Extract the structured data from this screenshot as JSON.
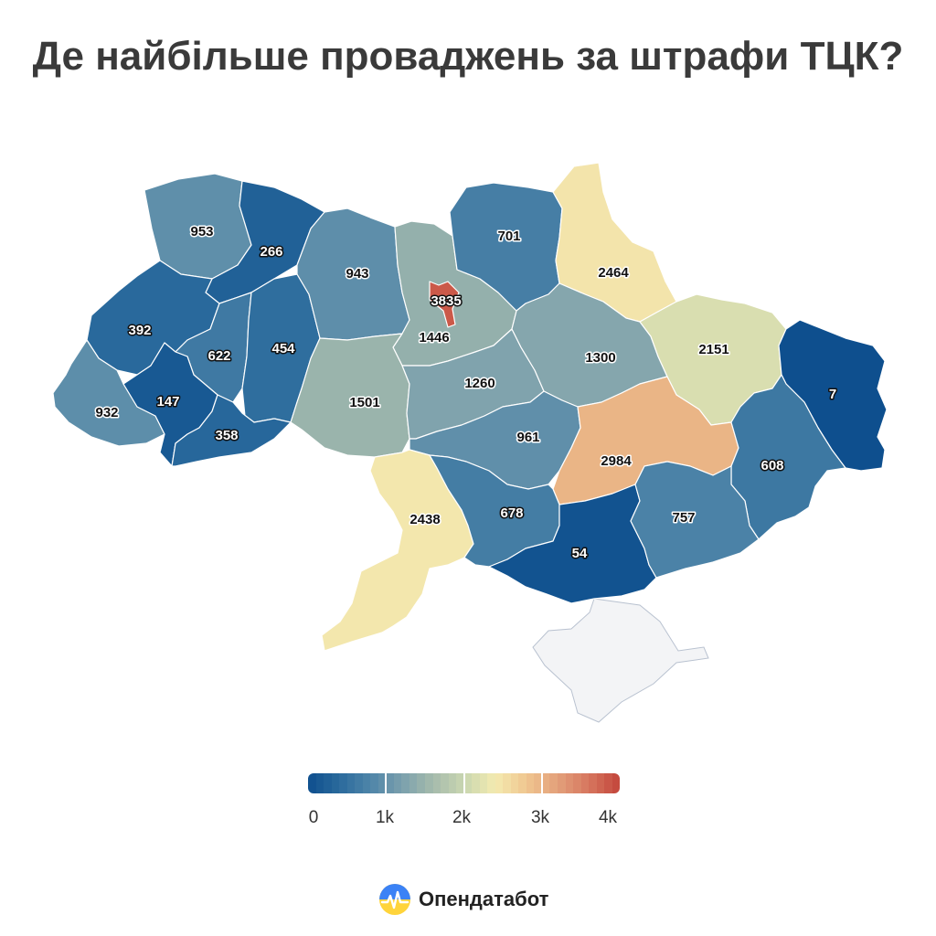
{
  "title": "Де найбільше проваджень за штрафи ТЦК?",
  "colors": {
    "scale": [
      "#0e4f8e",
      "#2a6a9c",
      "#4f85a8",
      "#7a9fad",
      "#a5bbac",
      "#c9d6b0",
      "#f3eab0",
      "#f0c690",
      "#e3a07a",
      "#d6765e",
      "#c3453b"
    ],
    "no_data": "#f3f4f6"
  },
  "legend": {
    "min": 0,
    "max": 4000,
    "ticks": [
      {
        "label": "0",
        "value": 0
      },
      {
        "label": "1k",
        "value": 1000
      },
      {
        "label": "2k",
        "value": 2000
      },
      {
        "label": "3k",
        "value": 3000
      },
      {
        "label": "4k",
        "value": 4000
      }
    ]
  },
  "regions": [
    {
      "id": "volyn",
      "value": 953,
      "label": "953"
    },
    {
      "id": "rivne",
      "value": 266,
      "label": "266"
    },
    {
      "id": "lviv",
      "value": 392,
      "label": "392"
    },
    {
      "id": "ternopil",
      "value": 622,
      "label": "622"
    },
    {
      "id": "khmelnytskyi",
      "value": 454,
      "label": "454"
    },
    {
      "id": "zakarpattia",
      "value": 932,
      "label": "932"
    },
    {
      "id": "ivano-frankivsk",
      "value": 147,
      "label": "147"
    },
    {
      "id": "chernivtsi",
      "value": 358,
      "label": "358"
    },
    {
      "id": "zhytomyr",
      "value": 943,
      "label": "943"
    },
    {
      "id": "kyiv-oblast",
      "value": 1446,
      "label": "1446"
    },
    {
      "id": "kyiv-city",
      "value": 3835,
      "label": "3835"
    },
    {
      "id": "vinnytsia",
      "value": 1501,
      "label": "1501"
    },
    {
      "id": "cherkasy",
      "value": 1260,
      "label": "1260"
    },
    {
      "id": "chernihiv",
      "value": 701,
      "label": "701"
    },
    {
      "id": "sumy",
      "value": 2464,
      "label": "2464"
    },
    {
      "id": "poltava",
      "value": 1300,
      "label": "1300"
    },
    {
      "id": "kharkiv",
      "value": 2151,
      "label": "2151"
    },
    {
      "id": "luhansk",
      "value": 7,
      "label": "7"
    },
    {
      "id": "kirovohrad",
      "value": 961,
      "label": "961"
    },
    {
      "id": "dnipropetrovsk",
      "value": 2984,
      "label": "2984"
    },
    {
      "id": "donetsk",
      "value": 608,
      "label": "608"
    },
    {
      "id": "odesa",
      "value": 2438,
      "label": "2438"
    },
    {
      "id": "mykolaiv",
      "value": 678,
      "label": "678"
    },
    {
      "id": "kherson",
      "value": 54,
      "label": "54"
    },
    {
      "id": "zaporizhzhia",
      "value": 757,
      "label": "757"
    },
    {
      "id": "crimea",
      "value": null,
      "label": ""
    }
  ],
  "brand": {
    "name": "Опендатабот",
    "logo": "opendatabot-logo-icon"
  }
}
